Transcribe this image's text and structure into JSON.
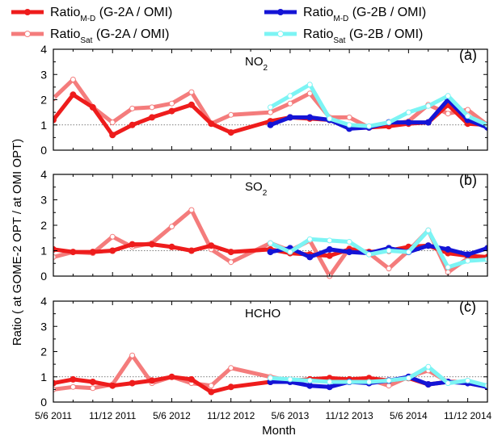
{
  "chart_data": {
    "type": "line",
    "ylabel": "Ratio ( at GOME-2 OPT / at OMI OPT)",
    "xlabel": "Month",
    "x_tick_labels": [
      "5/6 2011",
      "11/12 2011",
      "5/6 2012",
      "11/12 2012",
      "5/6 2013",
      "11/12 2013",
      "5/6 2014",
      "11/12 2014"
    ],
    "xlim": [
      0,
      22
    ],
    "ylim": [
      0,
      4
    ],
    "y_ticks": [
      "0",
      "1",
      "2",
      "3",
      "4"
    ],
    "reference_line": 1,
    "legend": [
      {
        "key": "g2a_md",
        "main": "Ratio",
        "sub": "M-D",
        "rest": " (G-2A / OMI)",
        "color": "#ee1c1c"
      },
      {
        "key": "g2b_md",
        "main": "Ratio",
        "sub": "M-D",
        "rest": " (G-2B / OMI)",
        "color": "#1414d6"
      },
      {
        "key": "g2a_sat",
        "main": "Ratio",
        "sub": "Sat",
        "rest": " (G-2A / OMI)",
        "color": "#f47c7c"
      },
      {
        "key": "g2b_sat",
        "main": "Ratio",
        "sub": "Sat",
        "rest": " (G-2B / OMI)",
        "color": "#7cf4f4"
      }
    ],
    "panels": [
      {
        "letter": "(a)",
        "species": "NO",
        "species_sub": "2",
        "series": {
          "g2a_sat": {
            "x": [
              0,
              1,
              2,
              3,
              4,
              5,
              6,
              7,
              8,
              9,
              11,
              12,
              13,
              14,
              15,
              16,
              17,
              18,
              19,
              20,
              21,
              22
            ],
            "y": [
              2.05,
              2.8,
              1.7,
              1.1,
              1.65,
              1.7,
              1.85,
              2.3,
              1.05,
              1.4,
              1.5,
              1.85,
              2.25,
              1.3,
              1.3,
              0.9,
              1.0,
              1.15,
              1.8,
              1.45,
              1.6,
              1.0
            ]
          },
          "g2a_md": {
            "x": [
              0,
              1,
              2,
              3,
              4,
              5,
              6,
              7,
              8,
              9,
              11,
              12,
              13,
              14,
              15,
              16,
              17,
              18,
              19,
              20,
              21,
              22
            ],
            "y": [
              1.2,
              2.2,
              1.7,
              0.6,
              1.0,
              1.3,
              1.55,
              1.8,
              1.05,
              0.7,
              1.15,
              1.3,
              1.25,
              1.2,
              0.9,
              0.9,
              0.95,
              1.05,
              1.1,
              1.8,
              1.05,
              1.0
            ]
          },
          "g2b_md": {
            "x": [
              11,
              12,
              13,
              14,
              15,
              16,
              17,
              18,
              19,
              20,
              21,
              22
            ],
            "y": [
              1.0,
              1.3,
              1.3,
              1.2,
              0.85,
              0.9,
              1.1,
              1.1,
              1.1,
              2.0,
              1.2,
              0.9
            ]
          },
          "g2b_sat": {
            "x": [
              11,
              12,
              13,
              14,
              15,
              16,
              17,
              18,
              19,
              20,
              21,
              22
            ],
            "y": [
              1.7,
              2.15,
              2.6,
              1.25,
              1.0,
              0.95,
              1.1,
              1.5,
              1.75,
              2.15,
              1.35,
              1.0
            ]
          }
        }
      },
      {
        "letter": "(b)",
        "species": "SO",
        "species_sub": "2",
        "series": {
          "g2a_sat": {
            "x": [
              0,
              1,
              2,
              3,
              4,
              5,
              6,
              7,
              8,
              9,
              11,
              12,
              13,
              14,
              15,
              16,
              17,
              18,
              19,
              20,
              21,
              22
            ],
            "y": [
              0.75,
              0.95,
              0.9,
              1.55,
              1.15,
              1.3,
              1.95,
              2.6,
              1.05,
              0.55,
              1.3,
              1.0,
              1.4,
              0.0,
              1.1,
              0.9,
              0.3,
              1.0,
              1.8,
              0.15,
              0.7,
              0.7
            ]
          },
          "g2a_md": {
            "x": [
              0,
              1,
              2,
              3,
              4,
              5,
              6,
              7,
              8,
              9,
              11,
              12,
              13,
              14,
              15,
              16,
              17,
              18,
              19,
              20,
              21,
              22
            ],
            "y": [
              1.05,
              0.95,
              0.95,
              1.0,
              1.25,
              1.25,
              1.15,
              1.0,
              1.2,
              0.95,
              1.05,
              0.9,
              0.85,
              0.8,
              1.05,
              0.95,
              1.0,
              1.15,
              1.2,
              0.9,
              0.8,
              0.75
            ]
          },
          "g2b_md": {
            "x": [
              11,
              12,
              13,
              14,
              15,
              16,
              17,
              18,
              19,
              20,
              21,
              22
            ],
            "y": [
              0.95,
              1.1,
              0.75,
              1.05,
              0.95,
              0.9,
              1.1,
              0.95,
              1.2,
              1.05,
              0.85,
              1.1
            ]
          },
          "g2b_sat": {
            "x": [
              11,
              12,
              13,
              14,
              15,
              16,
              17,
              18,
              19,
              20,
              21,
              22
            ],
            "y": [
              1.3,
              0.95,
              1.45,
              1.4,
              1.35,
              0.85,
              1.0,
              0.95,
              1.8,
              0.35,
              0.6,
              0.65
            ]
          }
        }
      },
      {
        "letter": "(c)",
        "species": "HCHO",
        "species_sub": "",
        "series": {
          "g2a_sat": {
            "x": [
              0,
              1,
              2,
              3,
              4,
              5,
              6,
              7,
              8,
              9,
              11,
              12,
              13,
              14,
              15,
              16,
              17,
              18,
              19,
              20,
              21,
              22
            ],
            "y": [
              0.5,
              0.6,
              0.55,
              0.7,
              1.85,
              0.75,
              1.0,
              0.75,
              0.65,
              1.35,
              1.0,
              0.85,
              0.9,
              0.95,
              0.8,
              0.9,
              0.65,
              1.0,
              1.25,
              0.8,
              0.75,
              0.6
            ]
          },
          "g2a_md": {
            "x": [
              0,
              1,
              2,
              3,
              4,
              5,
              6,
              7,
              8,
              9,
              11,
              12,
              13,
              14,
              15,
              16,
              17,
              18,
              19,
              20,
              21,
              22
            ],
            "y": [
              0.75,
              0.9,
              0.8,
              0.65,
              0.75,
              0.85,
              1.0,
              0.9,
              0.4,
              0.6,
              0.8,
              0.85,
              0.9,
              0.95,
              0.9,
              0.95,
              0.85,
              0.95,
              0.7,
              0.8,
              0.8,
              0.6
            ]
          },
          "g2b_md": {
            "x": [
              11,
              12,
              13,
              14,
              15,
              16,
              17,
              18,
              19,
              20,
              21,
              22
            ],
            "y": [
              0.8,
              0.8,
              0.65,
              0.6,
              0.8,
              0.75,
              0.85,
              1.0,
              0.7,
              0.8,
              0.75,
              0.6
            ]
          },
          "g2b_sat": {
            "x": [
              11,
              12,
              13,
              14,
              15,
              16,
              17,
              18,
              19,
              20,
              21,
              22
            ],
            "y": [
              0.95,
              0.9,
              0.85,
              0.8,
              0.8,
              0.8,
              0.85,
              0.95,
              1.4,
              0.75,
              0.85,
              0.65
            ]
          }
        }
      }
    ]
  }
}
